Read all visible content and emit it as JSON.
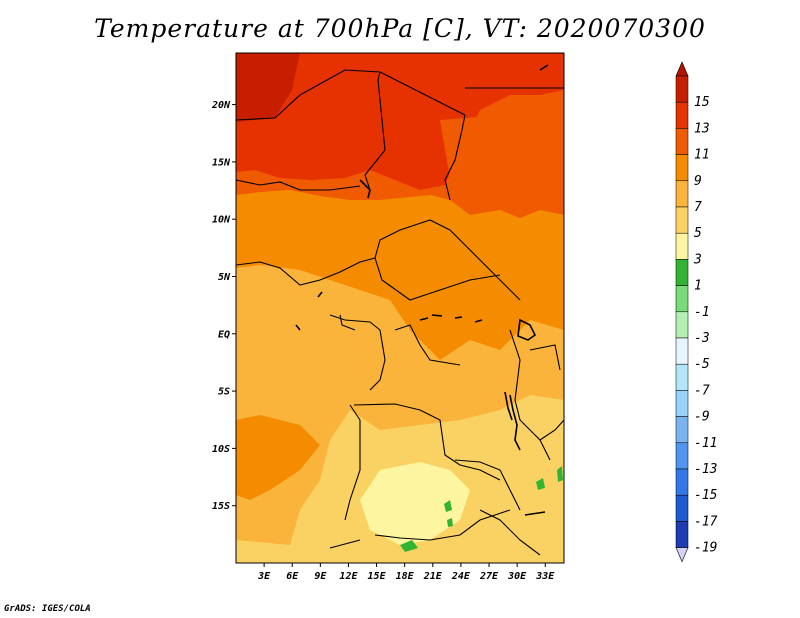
{
  "title": "Temperature at 700hPa [C], VT: 2020070300",
  "footer": "GrADS: IGES/COLA",
  "map": {
    "lon_range": [
      0,
      35
    ],
    "lat_range": [
      -20,
      24.5
    ],
    "lat_ticks": [
      {
        "value": 20,
        "label": "20N"
      },
      {
        "value": 15,
        "label": "15N"
      },
      {
        "value": 10,
        "label": "10N"
      },
      {
        "value": 5,
        "label": "5N"
      },
      {
        "value": 0,
        "label": "EQ"
      },
      {
        "value": -5,
        "label": "5S"
      },
      {
        "value": -10,
        "label": "10S"
      },
      {
        "value": -15,
        "label": "15S"
      }
    ],
    "lon_ticks": [
      {
        "value": 3,
        "label": "3E"
      },
      {
        "value": 6,
        "label": "6E"
      },
      {
        "value": 9,
        "label": "9E"
      },
      {
        "value": 12,
        "label": "12E"
      },
      {
        "value": 15,
        "label": "15E"
      },
      {
        "value": 18,
        "label": "18E"
      },
      {
        "value": 21,
        "label": "21E"
      },
      {
        "value": 24,
        "label": "24E"
      },
      {
        "value": 27,
        "label": "27E"
      },
      {
        "value": 30,
        "label": "30E"
      },
      {
        "value": 33,
        "label": "33E"
      }
    ]
  },
  "colorbar": {
    "levels": [
      {
        "label": "15",
        "color": "#c81e00"
      },
      {
        "label": "13",
        "color": "#e63200"
      },
      {
        "label": "11",
        "color": "#f05a00"
      },
      {
        "label": "9",
        "color": "#f58c00"
      },
      {
        "label": "7",
        "color": "#fab43c"
      },
      {
        "label": "5",
        "color": "#fad264"
      },
      {
        "label": "3",
        "color": "#fdf5a0"
      },
      {
        "label": "1",
        "color": "#32b432"
      },
      {
        "label": "-1",
        "color": "#78dc78"
      },
      {
        "label": "-3",
        "color": "#b4f0b4"
      },
      {
        "label": "-5",
        "color": "#e6f5ff"
      },
      {
        "label": "-7",
        "color": "#b4e6fa"
      },
      {
        "label": "-9",
        "color": "#96d2fa"
      },
      {
        "label": "-11",
        "color": "#78b4f0"
      },
      {
        "label": "-13",
        "color": "#5096f0"
      },
      {
        "label": "-15",
        "color": "#3278e6"
      },
      {
        "label": "-17",
        "color": "#1e5ad2"
      },
      {
        "label": "-19",
        "color": "#1e3cb4"
      }
    ],
    "top_arrow_color": "#b41400",
    "bottom_arrow_color": "#d2d2f5",
    "deep_blue": "#0a0a78"
  }
}
